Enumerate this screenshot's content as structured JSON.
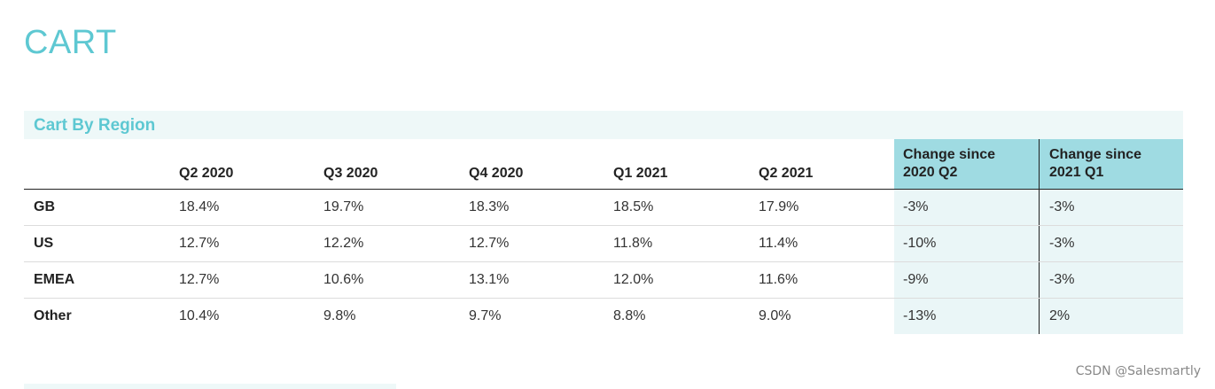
{
  "page": {
    "title": "CART",
    "watermark": "CSDN @Salesmartly"
  },
  "section": {
    "title": "Cart By Region"
  },
  "table": {
    "columns": [
      "",
      "Q2 2020",
      "Q3 2020",
      "Q4 2020",
      "Q1 2021",
      "Q2 2021",
      "Change since\n2020 Q2",
      "Change since\n2021 Q1"
    ],
    "rows": [
      {
        "region": "GB",
        "values": [
          "18.4%",
          "19.7%",
          "18.3%",
          "18.5%",
          "17.9%",
          "-3%",
          "-3%"
        ]
      },
      {
        "region": "US",
        "values": [
          "12.7%",
          "12.2%",
          "12.7%",
          "11.8%",
          "11.4%",
          "-10%",
          "-3%"
        ]
      },
      {
        "region": "EMEA",
        "values": [
          "12.7%",
          "10.6%",
          "13.1%",
          "12.0%",
          "11.6%",
          "-9%",
          "-3%"
        ]
      },
      {
        "region": "Other",
        "values": [
          "10.4%",
          "9.8%",
          "9.7%",
          "8.8%",
          "9.0%",
          "-13%",
          "2%"
        ]
      }
    ]
  },
  "colors": {
    "accent": "#5ec8d2",
    "change_header_bg": "#9fdbe2",
    "change_cell_bg": "#eaf6f7",
    "section_bg": "#eef8f8"
  }
}
